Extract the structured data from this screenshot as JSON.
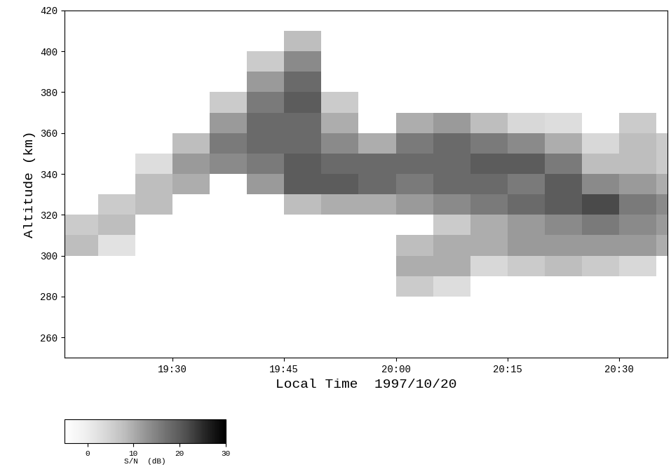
{
  "chart_data": {
    "type": "heatmap",
    "x_label": "Local Time  1997/10/20",
    "y_label": "Altitude (km)",
    "time_edges": [
      1155,
      1160,
      1165,
      1170,
      1175,
      1180,
      1185,
      1190,
      1195,
      1200,
      1205,
      1210,
      1215,
      1220,
      1225,
      1230,
      1235,
      1240
    ],
    "altitude_edges": [
      250,
      260,
      270,
      280,
      290,
      300,
      310,
      320,
      330,
      340,
      350,
      360,
      370,
      380,
      390,
      400,
      410,
      420
    ],
    "cells": [
      [
        null,
        null,
        null,
        null,
        null,
        null,
        null,
        null,
        null,
        null,
        null,
        null,
        null,
        null,
        null,
        null,
        null
      ],
      [
        null,
        null,
        null,
        null,
        null,
        null,
        null,
        null,
        null,
        null,
        null,
        null,
        null,
        null,
        null,
        null,
        null
      ],
      [
        null,
        null,
        null,
        null,
        null,
        null,
        null,
        null,
        null,
        null,
        null,
        null,
        null,
        null,
        null,
        null,
        null
      ],
      [
        null,
        null,
        null,
        null,
        null,
        null,
        null,
        null,
        null,
        6,
        3,
        null,
        null,
        null,
        null,
        null,
        null
      ],
      [
        null,
        null,
        null,
        null,
        null,
        null,
        null,
        null,
        null,
        10,
        10,
        4,
        6,
        8,
        6,
        4,
        null
      ],
      [
        8,
        2,
        null,
        null,
        null,
        null,
        null,
        null,
        null,
        8,
        10,
        10,
        12,
        12,
        12,
        12,
        10
      ],
      [
        6,
        8,
        null,
        null,
        null,
        null,
        null,
        null,
        null,
        null,
        6,
        10,
        12,
        14,
        16,
        14,
        12
      ],
      [
        null,
        6,
        8,
        null,
        null,
        null,
        8,
        10,
        10,
        12,
        14,
        16,
        18,
        20,
        22,
        16,
        14
      ],
      [
        null,
        null,
        8,
        10,
        null,
        12,
        20,
        20,
        18,
        16,
        18,
        18,
        16,
        20,
        14,
        12,
        10
      ],
      [
        null,
        null,
        3,
        12,
        14,
        16,
        20,
        18,
        18,
        18,
        18,
        20,
        20,
        16,
        8,
        8,
        6
      ],
      [
        null,
        null,
        null,
        8,
        16,
        18,
        18,
        14,
        10,
        16,
        18,
        16,
        14,
        10,
        4,
        8,
        6
      ],
      [
        null,
        null,
        null,
        null,
        12,
        18,
        18,
        10,
        null,
        10,
        12,
        8,
        4,
        3,
        null,
        6,
        null
      ],
      [
        null,
        null,
        null,
        null,
        6,
        16,
        20,
        6,
        null,
        null,
        null,
        null,
        null,
        null,
        null,
        null,
        null
      ],
      [
        null,
        null,
        null,
        null,
        null,
        12,
        18,
        null,
        null,
        null,
        null,
        null,
        null,
        null,
        null,
        null,
        null
      ],
      [
        null,
        null,
        null,
        null,
        null,
        6,
        14,
        null,
        null,
        null,
        null,
        null,
        null,
        null,
        null,
        null,
        null
      ],
      [
        null,
        null,
        null,
        null,
        null,
        null,
        8,
        null,
        null,
        null,
        null,
        null,
        null,
        null,
        null,
        null,
        null
      ],
      [
        null,
        null,
        null,
        null,
        null,
        null,
        null,
        null,
        null,
        null,
        null,
        null,
        null,
        null,
        null,
        null,
        null
      ]
    ],
    "xlim": [
      1155.5,
      1236.5
    ],
    "xticks": [
      {
        "value": 1170,
        "label": "19:30"
      },
      {
        "value": 1185,
        "label": "19:45"
      },
      {
        "value": 1200,
        "label": "20:00"
      },
      {
        "value": 1215,
        "label": "20:15"
      },
      {
        "value": 1230,
        "label": "20:30"
      }
    ],
    "ylim": [
      250,
      420
    ],
    "yticks": [
      260,
      280,
      300,
      320,
      340,
      360,
      380,
      400,
      420
    ],
    "colorbar_label": "S/N  (dB)",
    "colorbar_range": [
      -5,
      30
    ],
    "colorbar_ticks": [
      0,
      10,
      20,
      30
    ]
  }
}
